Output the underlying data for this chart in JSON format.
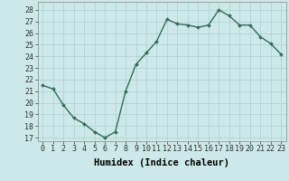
{
  "x": [
    0,
    1,
    2,
    3,
    4,
    5,
    6,
    7,
    8,
    9,
    10,
    11,
    12,
    13,
    14,
    15,
    16,
    17,
    18,
    19,
    20,
    21,
    22,
    23
  ],
  "y": [
    21.5,
    21.2,
    19.8,
    18.7,
    18.2,
    17.5,
    17.0,
    17.5,
    21.0,
    23.3,
    24.3,
    25.3,
    27.2,
    26.8,
    26.7,
    26.5,
    26.7,
    28.0,
    27.5,
    26.7,
    26.7,
    25.7,
    25.1,
    24.2
  ],
  "xlabel": "Humidex (Indice chaleur)",
  "xlim": [
    -0.5,
    23.5
  ],
  "ylim": [
    16.7,
    28.7
  ],
  "yticks": [
    17,
    18,
    19,
    20,
    21,
    22,
    23,
    24,
    25,
    26,
    27,
    28
  ],
  "xticks": [
    0,
    1,
    2,
    3,
    4,
    5,
    6,
    7,
    8,
    9,
    10,
    11,
    12,
    13,
    14,
    15,
    16,
    17,
    18,
    19,
    20,
    21,
    22,
    23
  ],
  "line_color": "#336b5e",
  "marker_color": "#336b5e",
  "bg_color": "#cce8e8",
  "grid_color": "#b0d0d0",
  "xlabel_fontsize": 7.5,
  "tick_fontsize": 6,
  "marker": "D",
  "markersize": 2,
  "linewidth": 1.0
}
